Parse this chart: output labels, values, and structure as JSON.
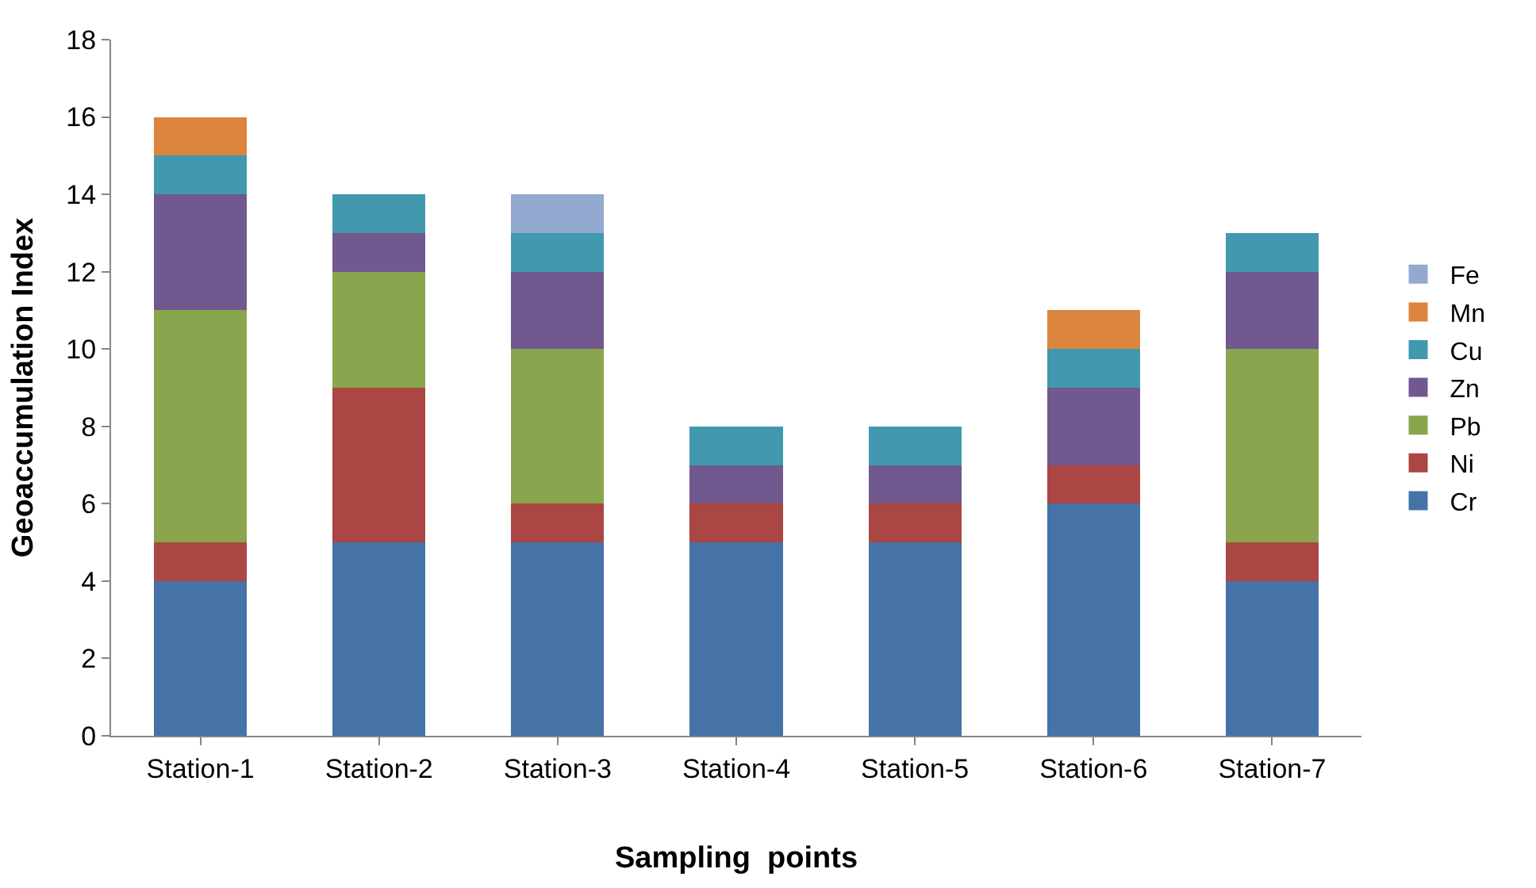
{
  "chart_data": {
    "type": "bar",
    "stacked": true,
    "xlabel": "Sampling  points",
    "ylabel": "Geoaccumulation Index",
    "categories": [
      "Station-1",
      "Station-2",
      "Station-3",
      "Station-4",
      "Station-5",
      "Station-6",
      "Station-7"
    ],
    "series": [
      {
        "name": "Cr",
        "color": "#4572a7",
        "values": [
          4,
          5,
          5,
          5,
          5,
          6,
          4
        ]
      },
      {
        "name": "Ni",
        "color": "#aa4643",
        "values": [
          1,
          4,
          1,
          1,
          1,
          1,
          1
        ]
      },
      {
        "name": "Pb",
        "color": "#89a54e",
        "values": [
          6,
          3,
          4,
          0,
          0,
          0,
          5
        ]
      },
      {
        "name": "Zn",
        "color": "#71588f",
        "values": [
          3,
          1,
          2,
          1,
          1,
          2,
          2
        ]
      },
      {
        "name": "Cu",
        "color": "#4198af",
        "values": [
          1,
          1,
          1,
          1,
          1,
          1,
          1
        ]
      },
      {
        "name": "Mn",
        "color": "#db843d",
        "values": [
          1,
          0,
          0,
          0,
          0,
          1,
          0
        ]
      },
      {
        "name": "Fe",
        "color": "#93a9cf",
        "values": [
          0,
          0,
          1,
          0,
          0,
          0,
          0
        ]
      }
    ],
    "ylim": [
      0,
      18
    ],
    "yticks": [
      0,
      2,
      4,
      6,
      8,
      10,
      12,
      14,
      16,
      18
    ],
    "grid": false,
    "legend": "right"
  }
}
